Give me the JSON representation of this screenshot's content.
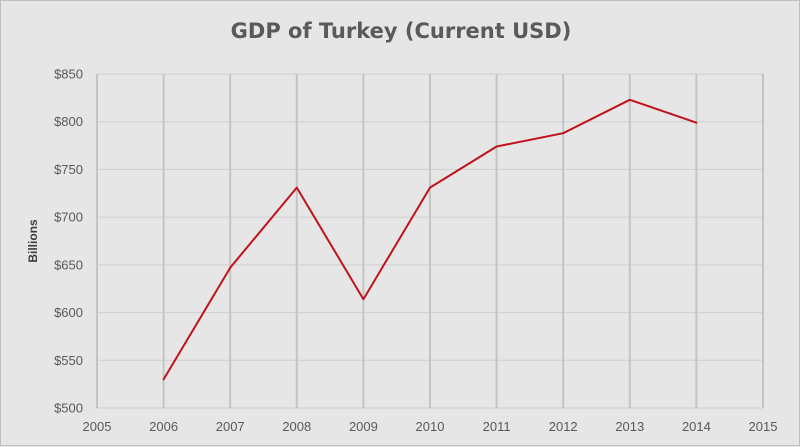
{
  "chart_data": {
    "type": "line",
    "title": "GDP of Turkey (Current USD)",
    "xlabel": "",
    "ylabel": "Billions",
    "xlim": [
      2005,
      2015
    ],
    "ylim": [
      500,
      850
    ],
    "x_ticks": [
      2005,
      2006,
      2007,
      2008,
      2009,
      2010,
      2011,
      2012,
      2013,
      2014,
      2015
    ],
    "y_ticks": [
      500,
      550,
      600,
      650,
      700,
      750,
      800,
      850
    ],
    "y_tick_labels": [
      "$500",
      "$550",
      "$600",
      "$650",
      "$700",
      "$750",
      "$800",
      "$850"
    ],
    "grid": true,
    "legend": "none",
    "series": [
      {
        "color": "#c0121c",
        "x": [
          2006,
          2007,
          2008,
          2009,
          2010,
          2011,
          2012,
          2013,
          2014
        ],
        "y": [
          530,
          647,
          731,
          614,
          731,
          774,
          788,
          823,
          799
        ]
      }
    ]
  }
}
